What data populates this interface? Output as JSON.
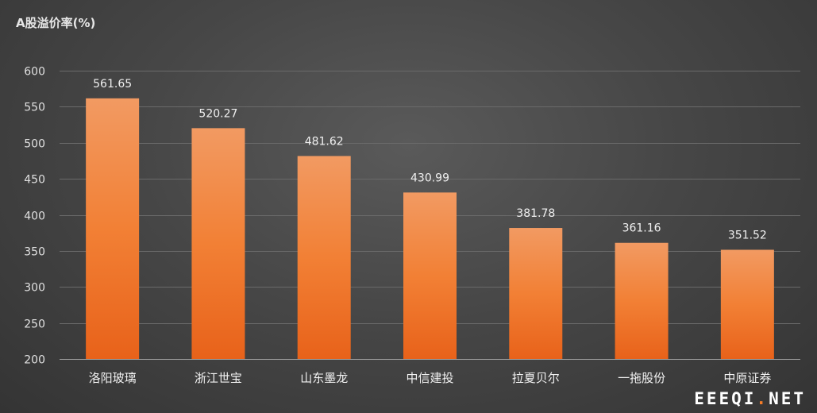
{
  "chart_data": {
    "type": "bar",
    "title": "A股溢价率(%)",
    "categories": [
      "洛阳玻璃",
      "浙江世宝",
      "山东墨龙",
      "中信建投",
      "拉夏贝尔",
      "一拖股份",
      "中原证券"
    ],
    "values": [
      561.65,
      520.27,
      481.62,
      430.99,
      381.78,
      361.16,
      351.52
    ],
    "data_labels": [
      "561.65",
      "520.27",
      "481.62",
      "430.99",
      "381.78",
      "361.16",
      "351.52"
    ],
    "ylim": [
      200,
      600
    ],
    "yticks": [
      200,
      250,
      300,
      350,
      400,
      450,
      500,
      550,
      600
    ],
    "grid": true,
    "bar_color_top": "#f29a62",
    "bar_color_bottom": "#e8621a"
  },
  "watermark": {
    "prefix": "EEEQI",
    "dot": ".",
    "suffix": "NET"
  }
}
